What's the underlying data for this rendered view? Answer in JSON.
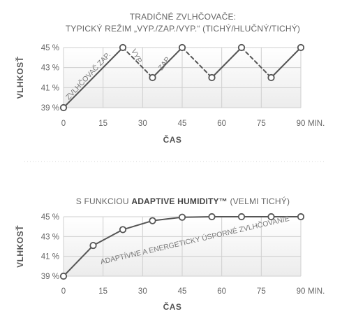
{
  "chart_data": [
    {
      "type": "line",
      "title_lines": [
        "TRADIČNÉ ZVLHČOVAČE:",
        "TYPICKÝ REŽIM „VYP./ZAP./VYP.“ (TICHÝ/HLUČNÝ/TICHÝ)"
      ],
      "xlabel": "ČAS",
      "ylabel": "VLHKOSŤ",
      "x_unit": "MIN.",
      "xlim": [
        0,
        90
      ],
      "ylim": [
        39,
        45
      ],
      "x_ticks": [
        0,
        15,
        30,
        45,
        60,
        75,
        90
      ],
      "y_ticks": [
        39,
        41,
        43,
        45
      ],
      "y_tick_labels": [
        "39 %",
        "41 %",
        "43 %",
        "45 %"
      ],
      "grid": true,
      "series": [
        {
          "x": [
            0,
            22.5,
            33.75,
            45,
            56.25,
            67.5,
            78.75,
            90
          ],
          "y": [
            39,
            45,
            42,
            45,
            42,
            45,
            42,
            45
          ],
          "segment_styles": [
            "solid",
            "dashed",
            "solid",
            "dashed",
            "solid",
            "dashed",
            "solid"
          ]
        }
      ],
      "annotations": [
        {
          "text": "ZVLHČOVAČ ZAP.",
          "near_x": 10,
          "near_y": 42
        },
        {
          "text": "VYP.",
          "near_x": 27,
          "near_y": 44
        },
        {
          "text": "ZAP.",
          "near_x": 39,
          "near_y": 43.3
        }
      ]
    },
    {
      "type": "line",
      "title_parts": [
        "S FUNKCIOU ",
        "ADAPTIVE HUMIDITY™",
        " (VELMI TICHÝ)"
      ],
      "xlabel": "ČAS",
      "ylabel": "VLHKOSŤ",
      "x_unit": "MIN.",
      "xlim": [
        0,
        90
      ],
      "ylim": [
        39,
        45
      ],
      "x_ticks": [
        0,
        15,
        30,
        45,
        60,
        75,
        90
      ],
      "y_ticks": [
        39,
        41,
        43,
        45
      ],
      "y_tick_labels": [
        "39 %",
        "41 %",
        "43 %",
        "45 %"
      ],
      "grid": true,
      "series": [
        {
          "x": [
            0,
            11.25,
            22.5,
            33.75,
            45,
            56.25,
            67.5,
            78.75,
            90
          ],
          "y": [
            39,
            42.1,
            43.7,
            44.6,
            44.95,
            45,
            45,
            45,
            45
          ]
        }
      ],
      "annotations": [
        {
          "text": "ADAPTÍVNE A ENERGETICKY ÚSPORNÉ ZVLHČOVANIE",
          "near_x": 50,
          "near_y": 42.4
        }
      ]
    }
  ],
  "colors": {
    "line": "#555555",
    "grid": "#cfcfcf",
    "text": "#666666",
    "plot_fill_top": "#f4f4f4"
  }
}
